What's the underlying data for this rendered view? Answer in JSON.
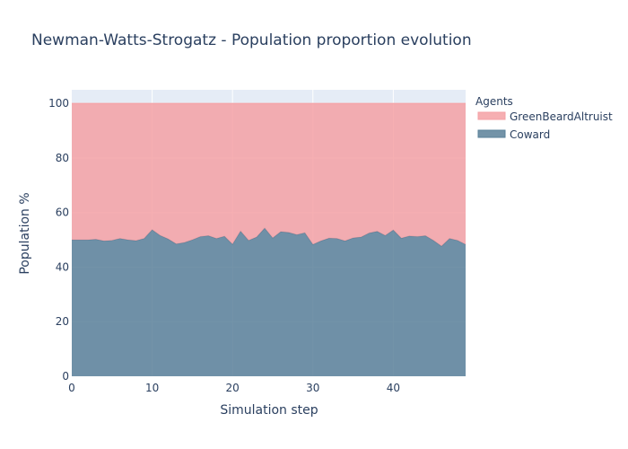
{
  "chart_data": {
    "type": "area",
    "title": "Newman-Watts-Strogatz - Population proportion evolution",
    "xlabel": "Simulation step",
    "ylabel": "Population %",
    "xlim": [
      0,
      49
    ],
    "ylim": [
      0,
      105
    ],
    "xticks": [
      0,
      10,
      20,
      30,
      40
    ],
    "yticks": [
      0,
      20,
      40,
      60,
      80,
      100
    ],
    "stacked": true,
    "grid": true,
    "legend": {
      "title": "Agents",
      "position": "top-right"
    },
    "x": [
      0,
      1,
      2,
      3,
      4,
      5,
      6,
      7,
      8,
      9,
      10,
      11,
      12,
      13,
      14,
      15,
      16,
      17,
      18,
      19,
      20,
      21,
      22,
      23,
      24,
      25,
      26,
      27,
      28,
      29,
      30,
      31,
      32,
      33,
      34,
      35,
      36,
      37,
      38,
      39,
      40,
      41,
      42,
      43,
      44,
      45,
      46,
      47,
      48,
      49
    ],
    "series": [
      {
        "name": "Coward",
        "color": "#5a8099",
        "values": [
          50,
          50,
          50,
          50.2,
          49.6,
          49.8,
          50.5,
          50,
          49.7,
          50.5,
          53.7,
          51.6,
          50.3,
          48.5,
          49,
          50,
          51.2,
          51.5,
          50.5,
          51.3,
          48.4,
          53.2,
          49.8,
          51,
          54.3,
          50.7,
          53,
          52.7,
          51.9,
          52.6,
          48.3,
          49.6,
          50.6,
          50.5,
          49.6,
          50.7,
          51,
          52.5,
          53.1,
          51.6,
          53.6,
          50.6,
          51.4,
          51.2,
          51.5,
          49.8,
          47.7,
          50.5,
          49.8,
          48.3
        ]
      },
      {
        "name": "GreenBeardAltruist",
        "color": "#f4a1a5",
        "values": [
          50,
          50,
          50,
          49.8,
          50.4,
          50.2,
          49.5,
          50,
          50.3,
          49.5,
          46.3,
          48.4,
          49.7,
          51.5,
          51,
          50,
          48.8,
          48.5,
          49.5,
          48.7,
          51.6,
          46.8,
          50.2,
          49,
          45.7,
          49.3,
          47,
          47.3,
          48.1,
          47.4,
          51.7,
          50.4,
          49.4,
          49.5,
          50.4,
          49.3,
          49,
          47.5,
          46.9,
          48.4,
          46.4,
          49.4,
          48.6,
          48.8,
          48.5,
          50.2,
          52.3,
          49.5,
          50.2,
          51.7
        ]
      }
    ]
  }
}
